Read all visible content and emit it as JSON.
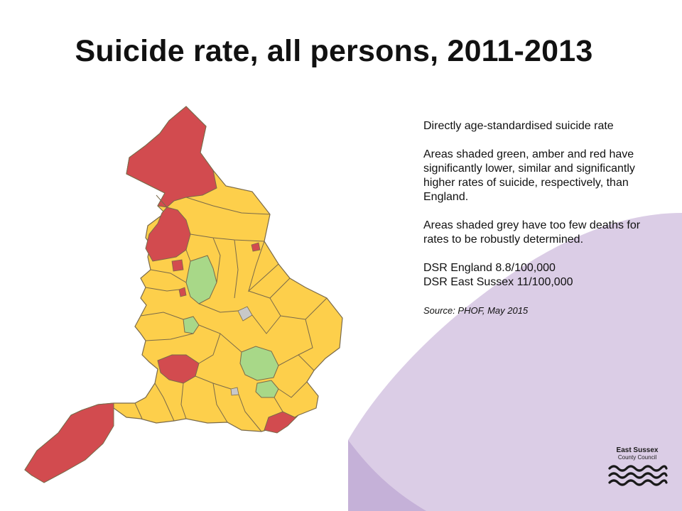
{
  "slide": {
    "title": "Suicide rate, all persons, 2011-2013"
  },
  "notes": {
    "metric": "Directly age-standardised suicide rate",
    "explanation": "Areas shaded green, amber and red have significantly lower, similar and significantly higher rates of suicide, respectively, than England.",
    "grey_note": "Areas shaded grey have too few deaths for rates to be robustly determined.",
    "dsr_england": "DSR England 8.8/100,000",
    "dsr_east_sussex": "DSR East Sussex 11/100,000",
    "source": "Source: PHOF, May 2015"
  },
  "legend_colors": {
    "significantly_lower": "#a8d888",
    "similar": "#fdcf4b",
    "significantly_higher": "#d24b4f",
    "too_few_deaths": "#c8c8c8",
    "boundary": "#7a6a4a"
  },
  "background_colors": {
    "lavender": "#dbcde6",
    "lavender_dark": "#c5b1d8"
  },
  "logo": {
    "line1": "East Sussex",
    "line2": "County Council",
    "icon": "waves-logo-icon"
  }
}
